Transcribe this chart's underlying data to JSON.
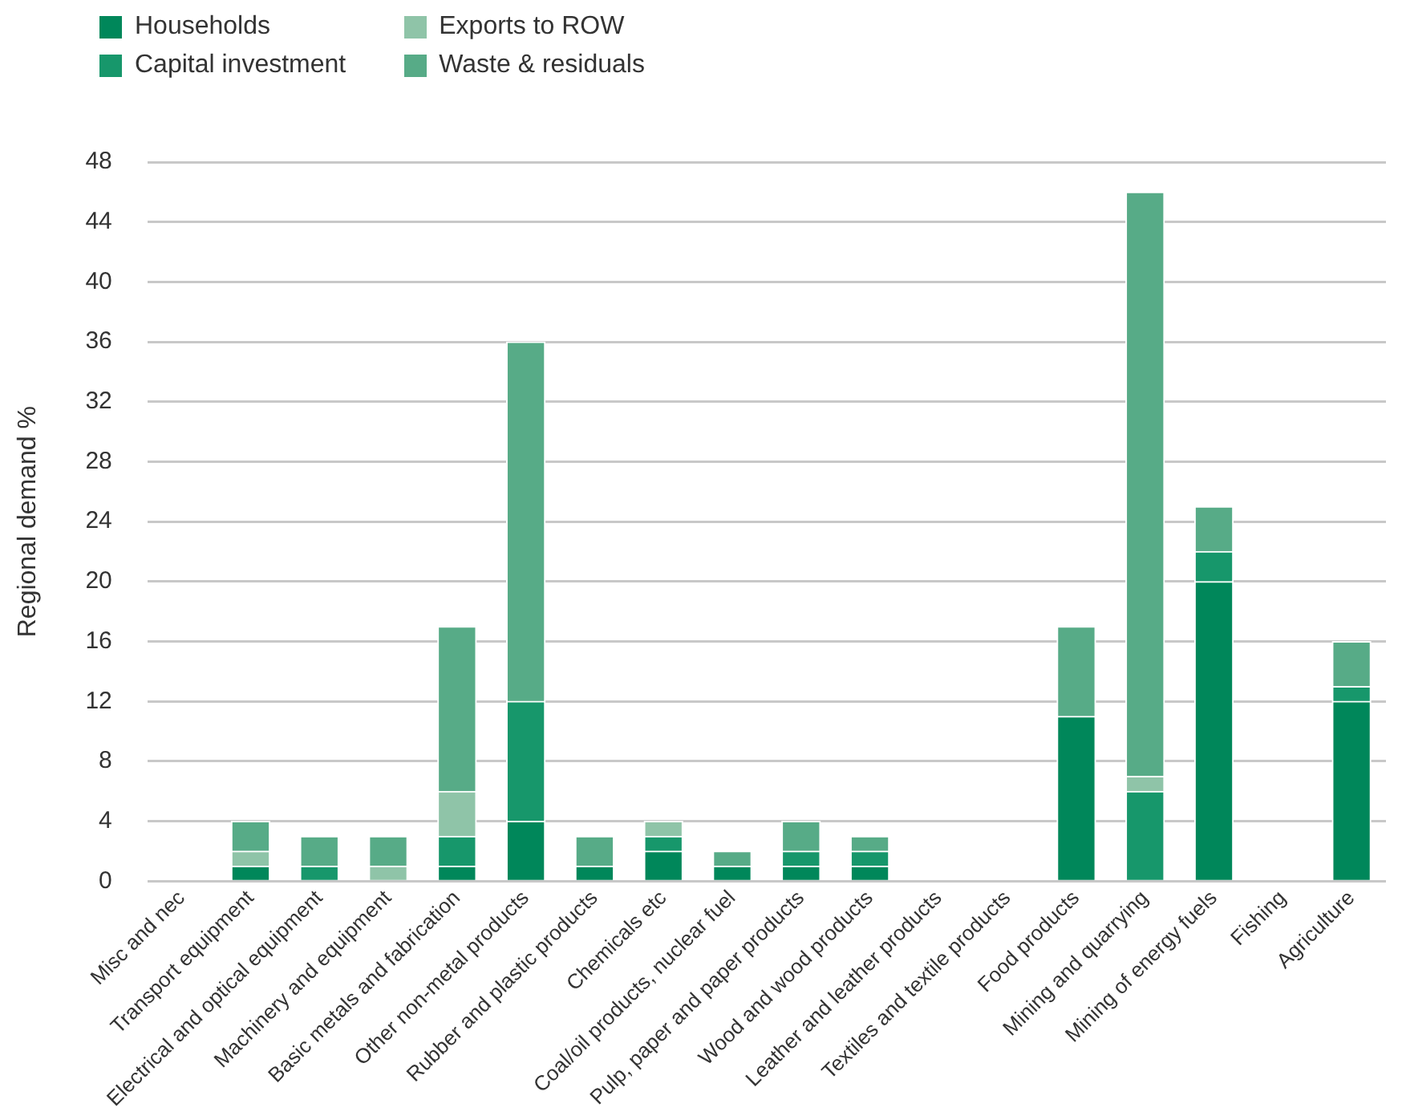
{
  "chart_data": {
    "type": "bar",
    "stacked": true,
    "ylabel": "Regional demand %",
    "categories": [
      "Misc and nec",
      "Transport equipment",
      "Electrical and optical equipment",
      "Machinery and equipment",
      "Basic metals and fabrication",
      "Other non-metal products",
      "Rubber and plastic products",
      "Chemicals etc",
      "Coal/oil products, nuclear fuel",
      "Pulp, paper and paper products",
      "Wood and wood products",
      "Leather and leather products",
      "Textiles and textile products",
      "Food products",
      "Mining and quarrying",
      "Mining of energy fuels",
      "Fishing",
      "Agriculture"
    ],
    "series": [
      {
        "name": "Households",
        "color": "#00875a",
        "values": [
          0,
          1,
          0,
          0,
          1,
          4,
          1,
          2,
          1,
          1,
          1,
          0,
          0,
          11,
          0,
          20,
          0,
          12
        ]
      },
      {
        "name": "Capital investment",
        "color": "#17976b",
        "values": [
          0,
          0,
          1,
          0,
          2,
          8,
          0,
          1,
          0,
          1,
          1,
          0,
          0,
          0,
          6,
          2,
          0,
          1
        ]
      },
      {
        "name": "Exports to ROW",
        "color": "#8fc4a8",
        "values": [
          0,
          1,
          0,
          1,
          3,
          0,
          0,
          1,
          0,
          0,
          0,
          0,
          0,
          0,
          1,
          0,
          0,
          0
        ]
      },
      {
        "name": "Waste & residuals",
        "color": "#57ab87",
        "values": [
          0,
          2,
          2,
          2,
          11,
          24,
          2,
          0,
          1,
          2,
          1,
          0,
          0,
          6,
          39,
          3,
          0,
          3
        ]
      }
    ],
    "ylim": [
      0,
      48
    ],
    "yticks": [
      0,
      4,
      8,
      12,
      16,
      20,
      24,
      28,
      32,
      36,
      40,
      44,
      48
    ],
    "grid": "y",
    "legend": "top left"
  }
}
